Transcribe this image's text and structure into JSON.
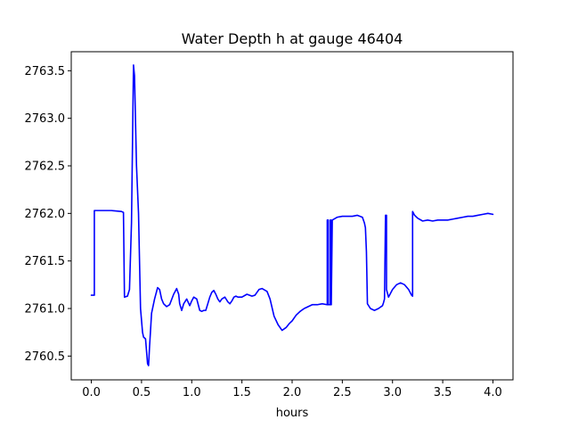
{
  "chart_data": {
    "type": "line",
    "title": "Water Depth h at gauge 46404",
    "xlabel": "hours",
    "ylabel": "",
    "xlim": [
      -0.2,
      4.2
    ],
    "ylim": [
      2760.25,
      2763.7
    ],
    "xticks": [
      0.0,
      0.5,
      1.0,
      1.5,
      2.0,
      2.5,
      3.0,
      3.5,
      4.0
    ],
    "xtick_labels": [
      "0.0",
      "0.5",
      "1.0",
      "1.5",
      "2.0",
      "2.5",
      "3.0",
      "3.5",
      "4.0"
    ],
    "yticks": [
      2760.5,
      2761.0,
      2761.5,
      2762.0,
      2762.5,
      2763.0,
      2763.5
    ],
    "ytick_labels": [
      "2760.5",
      "2761.0",
      "2761.5",
      "2762.0",
      "2762.5",
      "2763.0",
      "2763.5"
    ],
    "grid": false,
    "series": [
      {
        "color": "#0000ff",
        "x": [
          0.0,
          0.02,
          0.03,
          0.03,
          0.1,
          0.2,
          0.3,
          0.32,
          0.33,
          0.36,
          0.38,
          0.4,
          0.42,
          0.43,
          0.45,
          0.47,
          0.49,
          0.51,
          0.52,
          0.54,
          0.55,
          0.56,
          0.57,
          0.58,
          0.6,
          0.63,
          0.66,
          0.68,
          0.7,
          0.72,
          0.75,
          0.78,
          0.82,
          0.85,
          0.87,
          0.88,
          0.9,
          0.92,
          0.95,
          0.98,
          1.0,
          1.02,
          1.05,
          1.08,
          1.1,
          1.12,
          1.14,
          1.16,
          1.18,
          1.2,
          1.22,
          1.24,
          1.26,
          1.28,
          1.3,
          1.33,
          1.36,
          1.38,
          1.4,
          1.42,
          1.44,
          1.46,
          1.5,
          1.55,
          1.6,
          1.63,
          1.67,
          1.7,
          1.75,
          1.78,
          1.82,
          1.86,
          1.9,
          1.94,
          1.97,
          2.0,
          2.04,
          2.08,
          2.12,
          2.16,
          2.2,
          2.25,
          2.3,
          2.35,
          2.35,
          2.36,
          2.36,
          2.38,
          2.38,
          2.39,
          2.39,
          2.4,
          2.45,
          2.5,
          2.55,
          2.6,
          2.65,
          2.7,
          2.72,
          2.73,
          2.74,
          2.75,
          2.78,
          2.82,
          2.86,
          2.9,
          2.91,
          2.92,
          2.93,
          2.93,
          2.94,
          2.94,
          2.96,
          3.0,
          3.04,
          3.08,
          3.12,
          3.16,
          3.19,
          3.2,
          3.2,
          3.22,
          3.25,
          3.3,
          3.35,
          3.4,
          3.45,
          3.5,
          3.55,
          3.6,
          3.65,
          3.7,
          3.75,
          3.8,
          3.85,
          3.9,
          3.95,
          4.0
        ],
        "y": [
          2761.14,
          2761.14,
          2761.14,
          2762.03,
          2762.03,
          2762.03,
          2762.02,
          2762.01,
          2761.12,
          2761.13,
          2761.2,
          2761.9,
          2763.56,
          2763.45,
          2762.5,
          2762.0,
          2761.0,
          2760.75,
          2760.7,
          2760.68,
          2760.55,
          2760.42,
          2760.4,
          2760.6,
          2760.95,
          2761.1,
          2761.22,
          2761.2,
          2761.1,
          2761.05,
          2761.02,
          2761.04,
          2761.15,
          2761.21,
          2761.15,
          2761.05,
          2760.98,
          2761.05,
          2761.1,
          2761.03,
          2761.08,
          2761.12,
          2761.1,
          2760.98,
          2760.97,
          2760.98,
          2760.98,
          2761.05,
          2761.12,
          2761.17,
          2761.19,
          2761.15,
          2761.1,
          2761.07,
          2761.1,
          2761.12,
          2761.07,
          2761.05,
          2761.08,
          2761.12,
          2761.13,
          2761.12,
          2761.12,
          2761.15,
          2761.13,
          2761.14,
          2761.2,
          2761.21,
          2761.18,
          2761.1,
          2760.92,
          2760.83,
          2760.77,
          2760.8,
          2760.84,
          2760.87,
          2760.93,
          2760.97,
          2761.0,
          2761.02,
          2761.04,
          2761.04,
          2761.05,
          2761.04,
          2761.93,
          2761.93,
          2761.04,
          2761.04,
          2761.93,
          2761.93,
          2761.04,
          2761.93,
          2761.96,
          2761.97,
          2761.97,
          2761.97,
          2761.98,
          2761.96,
          2761.9,
          2761.85,
          2761.6,
          2761.05,
          2761.0,
          2760.98,
          2761.0,
          2761.03,
          2761.06,
          2761.1,
          2761.97,
          2761.98,
          2761.98,
          2761.2,
          2761.12,
          2761.2,
          2761.25,
          2761.27,
          2761.25,
          2761.2,
          2761.14,
          2761.13,
          2762.02,
          2761.98,
          2761.95,
          2761.92,
          2761.93,
          2761.92,
          2761.93,
          2761.93,
          2761.93,
          2761.94,
          2761.95,
          2761.96,
          2761.97,
          2761.97,
          2761.98,
          2761.99,
          2762.0,
          2761.99
        ]
      }
    ]
  }
}
